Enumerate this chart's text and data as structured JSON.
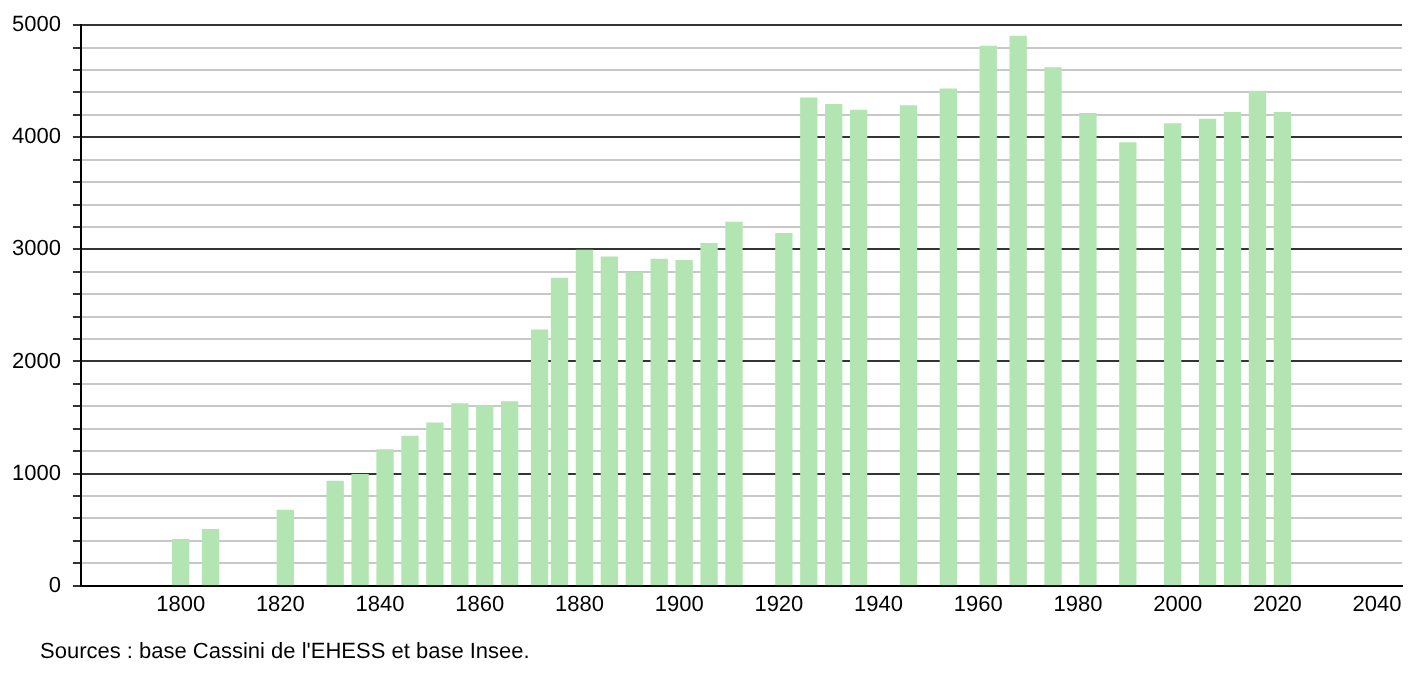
{
  "chart_data": {
    "type": "bar",
    "color": "#b3e5b3",
    "x": [
      1800,
      1806,
      1821,
      1831,
      1836,
      1841,
      1846,
      1851,
      1856,
      1861,
      1866,
      1872,
      1876,
      1881,
      1886,
      1891,
      1896,
      1901,
      1906,
      1911,
      1921,
      1926,
      1931,
      1936,
      1946,
      1954,
      1962,
      1968,
      1975,
      1982,
      1990,
      1999,
      2006,
      2011,
      2016,
      2021
    ],
    "values": [
      410,
      500,
      670,
      930,
      990,
      1210,
      1330,
      1450,
      1620,
      1600,
      1640,
      2280,
      2740,
      2990,
      2930,
      2790,
      2910,
      2900,
      3050,
      3240,
      3140,
      4350,
      4290,
      4240,
      4280,
      4430,
      4810,
      4900,
      4620,
      4210,
      3950,
      4120,
      4160,
      4220,
      4410,
      4220
    ],
    "xlim": [
      1780,
      2045
    ],
    "xticks": [
      1800,
      1820,
      1840,
      1860,
      1880,
      1900,
      1920,
      1940,
      1960,
      1980,
      2000,
      2020,
      2040
    ],
    "ylim": [
      0,
      5000
    ],
    "yticks": [
      0,
      {
        "value": 200,
        "label": null
      },
      {
        "value": 400,
        "label": null
      },
      {
        "value": 600,
        "label": null
      },
      {
        "value": 800,
        "label": null
      },
      1000,
      {
        "value": 1200,
        "label": null
      },
      {
        "value": 1400,
        "label": null
      },
      {
        "value": 1600,
        "label": null
      },
      {
        "value": 1800,
        "label": null
      },
      2000,
      {
        "value": 2200,
        "label": null
      },
      {
        "value": 2400,
        "label": null
      },
      {
        "value": 2600,
        "label": null
      },
      {
        "value": 2800,
        "label": null
      },
      3000,
      {
        "value": 3200,
        "label": null
      },
      {
        "value": 3400,
        "label": null
      },
      {
        "value": 3600,
        "label": null
      },
      {
        "value": 3800,
        "label": null
      },
      4000,
      {
        "value": 4200,
        "label": null
      },
      {
        "value": 4400,
        "label": null
      },
      {
        "value": 4600,
        "label": null
      },
      {
        "value": 4800,
        "label": null
      },
      5000
    ],
    "grid": "y",
    "legend": false,
    "annotations": [
      "Sources : base Cassini de l'EHESS et base Insee."
    ]
  }
}
